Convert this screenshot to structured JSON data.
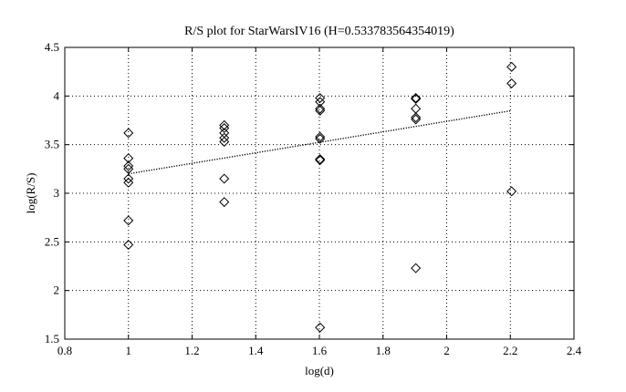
{
  "chart_data": {
    "type": "scatter",
    "title": "R/S plot for StarWarsIV16 (H=0.533783564354019)",
    "xlabel": "log(d)",
    "ylabel": "log(R/S)",
    "xlim": [
      0.8,
      2.4
    ],
    "ylim": [
      1.5,
      4.5
    ],
    "xticks": [
      0.8,
      1,
      1.2,
      1.4,
      1.6,
      1.8,
      2,
      2.2,
      2.4
    ],
    "yticks": [
      1.5,
      2,
      2.5,
      3,
      3.5,
      4,
      4.5
    ],
    "xtick_labels": [
      "0.8",
      "1",
      "1.2",
      "1.4",
      "1.6",
      "1.8",
      "2",
      "2.2",
      "2.4"
    ],
    "ytick_labels": [
      "1.5",
      "2",
      "2.5",
      "3",
      "3.5",
      "4",
      "4.5"
    ],
    "grid": true,
    "marker": "diamond",
    "points": [
      {
        "x": 1.0,
        "y": 3.62
      },
      {
        "x": 1.0,
        "y": 3.36
      },
      {
        "x": 1.0,
        "y": 3.28
      },
      {
        "x": 1.0,
        "y": 3.25
      },
      {
        "x": 1.0,
        "y": 3.15
      },
      {
        "x": 1.0,
        "y": 3.11
      },
      {
        "x": 1.0,
        "y": 2.72
      },
      {
        "x": 1.0,
        "y": 2.47
      },
      {
        "x": 1.301,
        "y": 3.7
      },
      {
        "x": 1.301,
        "y": 3.67
      },
      {
        "x": 1.301,
        "y": 3.62
      },
      {
        "x": 1.301,
        "y": 3.57
      },
      {
        "x": 1.301,
        "y": 3.53
      },
      {
        "x": 1.301,
        "y": 3.15
      },
      {
        "x": 1.301,
        "y": 2.91
      },
      {
        "x": 1.602,
        "y": 3.98
      },
      {
        "x": 1.602,
        "y": 3.94
      },
      {
        "x": 1.602,
        "y": 3.87
      },
      {
        "x": 1.602,
        "y": 3.85
      },
      {
        "x": 1.602,
        "y": 3.58
      },
      {
        "x": 1.602,
        "y": 3.56
      },
      {
        "x": 1.602,
        "y": 3.35
      },
      {
        "x": 1.602,
        "y": 3.34
      },
      {
        "x": 1.602,
        "y": 1.62
      },
      {
        "x": 1.903,
        "y": 3.98
      },
      {
        "x": 1.903,
        "y": 3.97
      },
      {
        "x": 1.903,
        "y": 3.87
      },
      {
        "x": 1.903,
        "y": 3.78
      },
      {
        "x": 1.903,
        "y": 3.76
      },
      {
        "x": 1.903,
        "y": 2.23
      },
      {
        "x": 2.204,
        "y": 4.3
      },
      {
        "x": 2.204,
        "y": 4.13
      },
      {
        "x": 2.204,
        "y": 3.02
      }
    ],
    "fit_line": {
      "style": "dotted",
      "x": [
        1.0,
        2.204
      ],
      "y": [
        3.2,
        3.85
      ]
    }
  }
}
